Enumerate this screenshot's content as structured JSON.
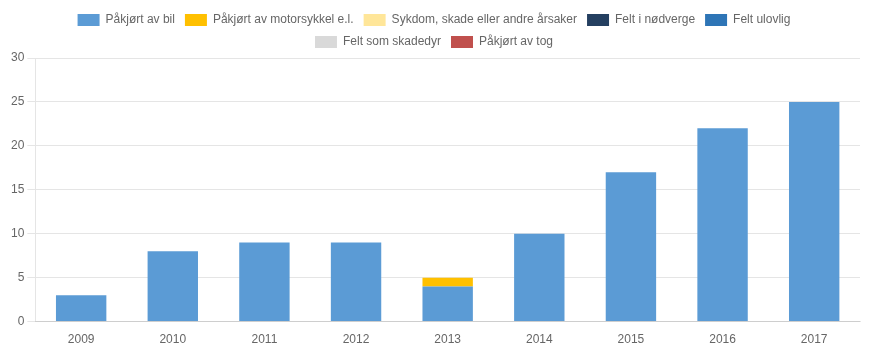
{
  "chart_data": {
    "type": "bar",
    "stacked": true,
    "categories": [
      "2009",
      "2010",
      "2011",
      "2012",
      "2013",
      "2014",
      "2015",
      "2016",
      "2017"
    ],
    "series": [
      {
        "name": "Påkjørt av bil",
        "color": "#5b9bd5",
        "values": [
          3,
          8,
          9,
          9,
          4,
          10,
          17,
          22,
          25
        ]
      },
      {
        "name": "Påkjørt av motorsykkel e.l.",
        "color": "#ffc000",
        "values": [
          0,
          0,
          0,
          0,
          1,
          0,
          0,
          0,
          0
        ]
      },
      {
        "name": "Sykdom, skade eller andre\nårsaker",
        "color": "#ffe699",
        "values": [
          null,
          null,
          null,
          null,
          null,
          null,
          null,
          null,
          null
        ]
      },
      {
        "name": "Felt i nødverge",
        "color": "#243f60",
        "values": [
          null,
          null,
          null,
          null,
          null,
          null,
          null,
          null,
          null
        ]
      },
      {
        "name": "Felt ulovlig",
        "color": "#2e75b6",
        "values": [
          null,
          null,
          null,
          null,
          null,
          null,
          null,
          null,
          null
        ]
      },
      {
        "name": "Felt som skadedyr",
        "color": "#d9d9d9",
        "values": [
          null,
          null,
          null,
          null,
          null,
          null,
          null,
          null,
          null
        ]
      },
      {
        "name": "Påkjørt av tog",
        "color": "#c0504d",
        "values": [
          null,
          null,
          null,
          null,
          null,
          null,
          null,
          null,
          null
        ]
      }
    ],
    "ylim": [
      0,
      30
    ],
    "yticks": [
      0,
      5,
      10,
      15,
      20,
      25,
      30
    ],
    "grid": true,
    "legend": "top"
  }
}
